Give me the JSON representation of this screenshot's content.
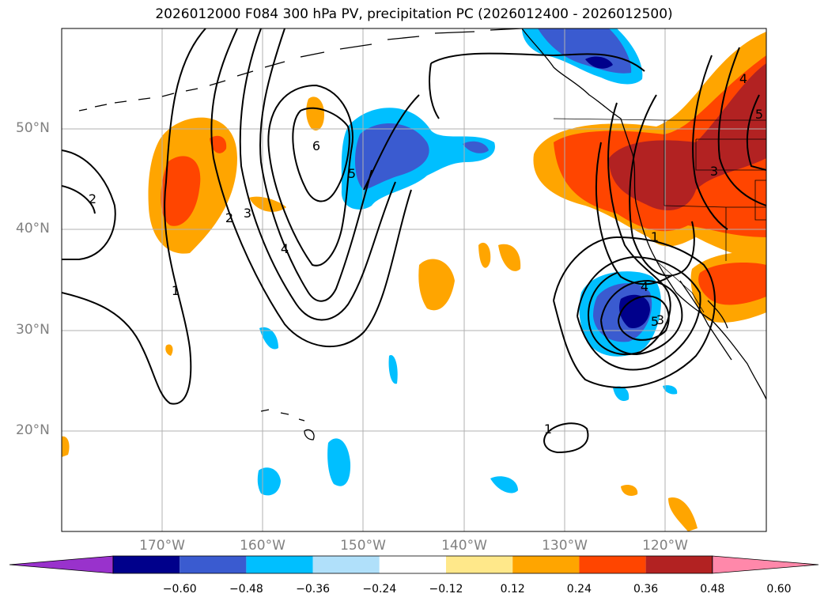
{
  "title": "2026012000 F084 300 hPa PV, precipitation PC (2026012400 - 2026012500)",
  "map": {
    "lon_range": [
      -180,
      -110
    ],
    "lat_range": [
      10,
      60
    ],
    "lat_labels": [
      "50°N",
      "40°N",
      "30°N",
      "20°N"
    ],
    "lon_labels": [
      "170°W",
      "160°W",
      "150°W",
      "140°W",
      "130°W",
      "120°W"
    ],
    "contour_labels": [
      "2",
      "1",
      "2",
      "3",
      "4",
      "6",
      "5",
      "1",
      "1",
      "4",
      "5",
      "3",
      "3",
      "4",
      "5"
    ]
  },
  "colorbar": {
    "tick_labels": [
      "−0.60",
      "−0.48",
      "−0.36",
      "−0.24",
      "−0.12",
      "0.12",
      "0.24",
      "0.36",
      "0.48",
      "0.60"
    ],
    "colors": [
      "#9932cc",
      "#00008b",
      "#3a5bd0",
      "#00bfff",
      "#b0e0fa",
      "#ffffff",
      "#ffe88a",
      "#ffa500",
      "#ff4500",
      "#b22222",
      "#ff88aa"
    ]
  }
}
